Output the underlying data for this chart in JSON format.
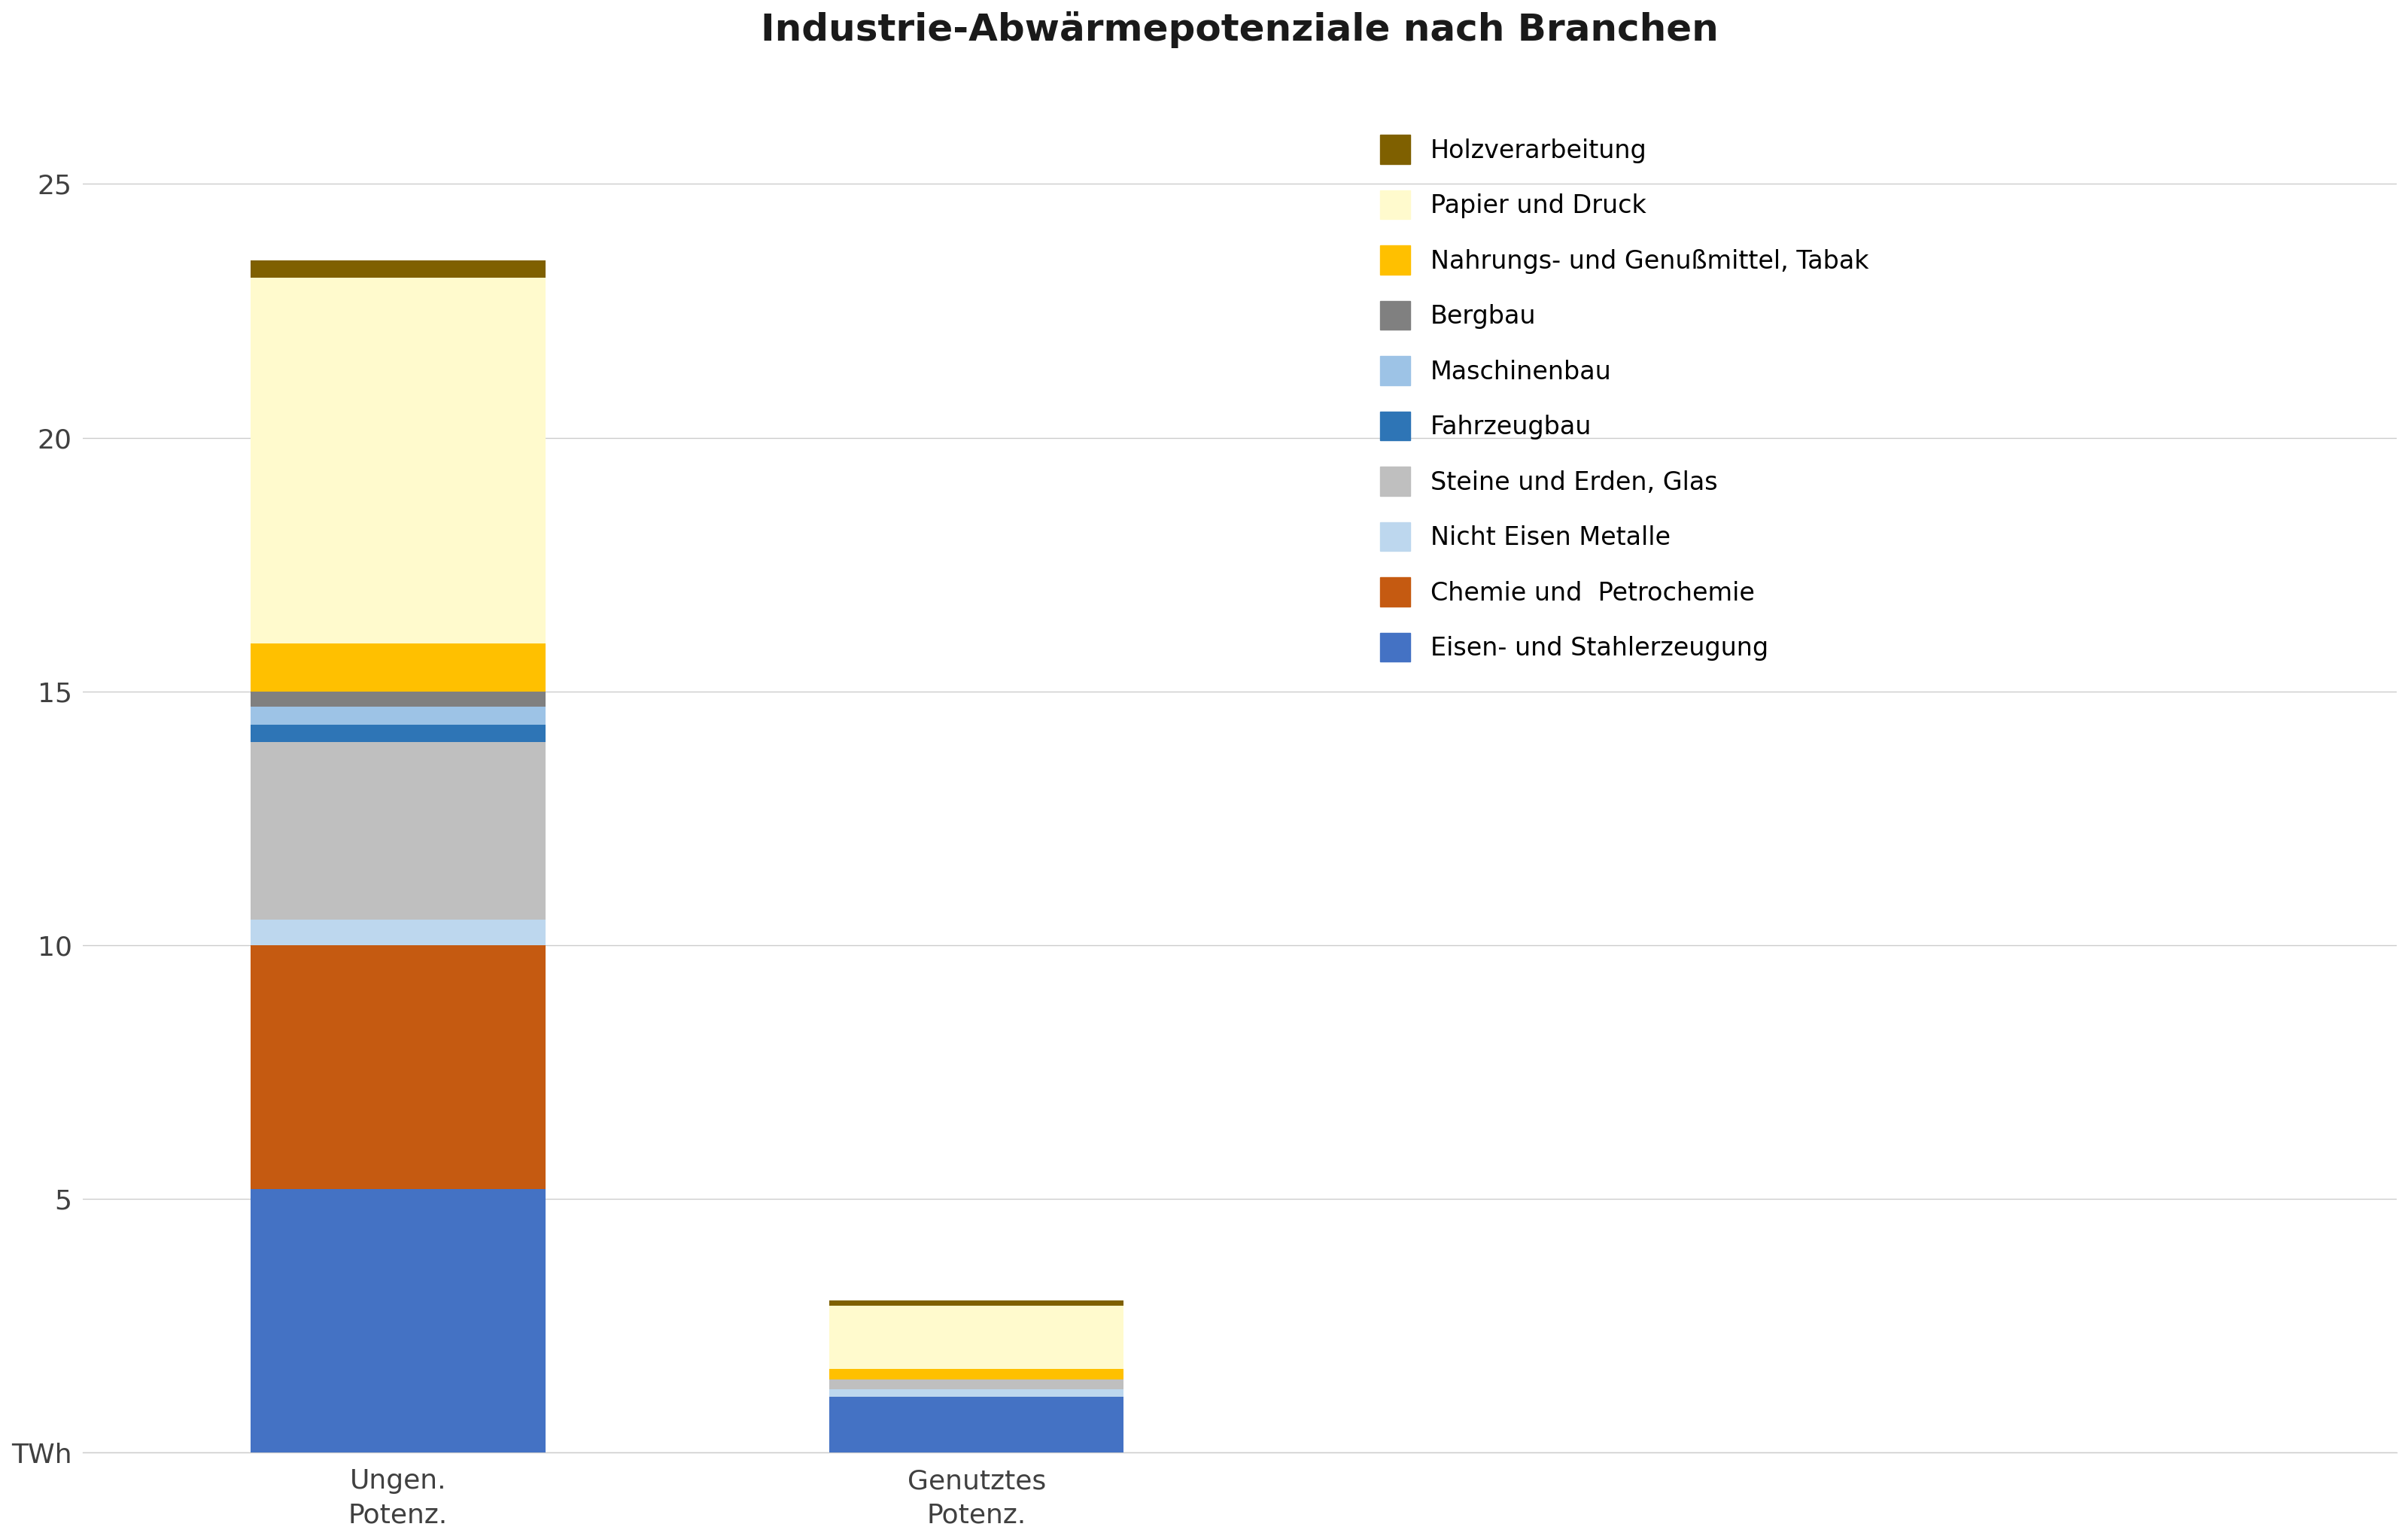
{
  "title": "Industrie-Abwärmepotenziale nach Branchen",
  "categories": [
    "Ungen.\nPotenz.",
    "Genutztes\nPotenz."
  ],
  "ylabel": "TWh",
  "ylim": [
    0,
    27
  ],
  "yticks": [
    0,
    5,
    10,
    15,
    20,
    25
  ],
  "ytick_labels": [
    "TWh",
    "5",
    "10",
    "15",
    "20",
    "25"
  ],
  "segments": [
    {
      "label": "Eisen- und Stahlerzeugung",
      "color": "#4472C4",
      "values": [
        5.2,
        1.1
      ]
    },
    {
      "label": "Chemie und  Petrochemie",
      "color": "#C55A11",
      "values": [
        4.8,
        0.0
      ]
    },
    {
      "label": "Nicht Eisen Metalle",
      "color": "#BDD7EE",
      "values": [
        0.5,
        0.15
      ]
    },
    {
      "label": "Steine und Erden, Glas",
      "color": "#BFBFBF",
      "values": [
        3.5,
        0.2
      ]
    },
    {
      "label": "Fahrzeugbau",
      "color": "#2E75B6",
      "values": [
        0.35,
        0.0
      ]
    },
    {
      "label": "Maschinenbau",
      "color": "#9DC3E6",
      "values": [
        0.35,
        0.0
      ]
    },
    {
      "label": "Bergbau",
      "color": "#808080",
      "values": [
        0.3,
        0.0
      ]
    },
    {
      "label": "Nahrungs- und Genußmittel, Tabak",
      "color": "#FFC000",
      "values": [
        0.95,
        0.2
      ]
    },
    {
      "label": "Papier und Druck",
      "color": "#FFFACD",
      "values": [
        7.2,
        1.25
      ]
    },
    {
      "label": "Holzverarbeitung",
      "color": "#7F6000",
      "values": [
        0.35,
        0.1
      ]
    }
  ],
  "background_color": "#FFFFFF",
  "title_fontsize": 36,
  "axis_fontsize": 26,
  "tick_fontsize": 26,
  "legend_fontsize": 24,
  "bar_width": 0.28,
  "x_positions": [
    0.3,
    0.85
  ],
  "xlim": [
    0.0,
    2.2
  ]
}
